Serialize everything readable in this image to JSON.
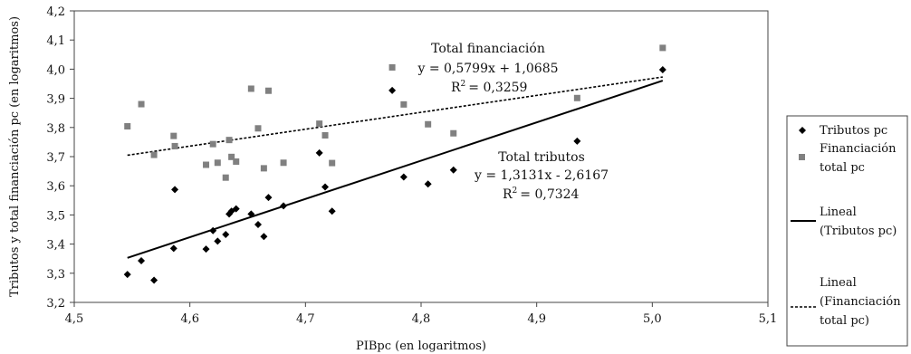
{
  "chart_data": {
    "type": "scatter",
    "xlabel": "PIBpc (en logaritmos)",
    "ylabel": "Tributos y total financiación pc (en logaritmos)",
    "xlim": [
      4.5,
      5.1
    ],
    "ylim": [
      3.2,
      4.2
    ],
    "x_ticks": [
      "4,5",
      "4,6",
      "4,7",
      "4,8",
      "4,9",
      "5,0",
      "5,1"
    ],
    "y_ticks": [
      "3,2",
      "3,3",
      "3,4",
      "3,5",
      "3,6",
      "3,7",
      "3,8",
      "3,9",
      "4,0",
      "4,1",
      "4,2"
    ],
    "grid": false,
    "legend_position": "right",
    "colors": {
      "tributos": "#000000",
      "financiacion": "#808080"
    },
    "series": [
      {
        "name": "Tributos pc",
        "marker": "diamond",
        "points": [
          [
            4.546,
            3.296
          ],
          [
            4.558,
            3.343
          ],
          [
            4.569,
            3.276
          ],
          [
            4.586,
            3.385
          ],
          [
            4.587,
            3.587
          ],
          [
            4.614,
            3.383
          ],
          [
            4.62,
            3.446
          ],
          [
            4.624,
            3.41
          ],
          [
            4.631,
            3.433
          ],
          [
            4.634,
            3.503
          ],
          [
            4.636,
            3.513
          ],
          [
            4.64,
            3.521
          ],
          [
            4.653,
            3.503
          ],
          [
            4.659,
            3.467
          ],
          [
            4.664,
            3.426
          ],
          [
            4.668,
            3.56
          ],
          [
            4.681,
            3.531
          ],
          [
            4.712,
            3.713
          ],
          [
            4.717,
            3.596
          ],
          [
            4.723,
            3.513
          ],
          [
            4.775,
            3.927
          ],
          [
            4.785,
            3.63
          ],
          [
            4.806,
            3.606
          ],
          [
            4.828,
            3.654
          ],
          [
            4.935,
            3.753
          ],
          [
            5.009,
            3.998
          ]
        ]
      },
      {
        "name": "Financiación total pc",
        "marker": "square",
        "points": [
          [
            4.546,
            3.804
          ],
          [
            4.558,
            3.88
          ],
          [
            4.569,
            3.706
          ],
          [
            4.586,
            3.771
          ],
          [
            4.587,
            3.736
          ],
          [
            4.614,
            3.672
          ],
          [
            4.62,
            3.743
          ],
          [
            4.624,
            3.679
          ],
          [
            4.631,
            3.628
          ],
          [
            4.634,
            3.757
          ],
          [
            4.636,
            3.699
          ],
          [
            4.64,
            3.683
          ],
          [
            4.653,
            3.933
          ],
          [
            4.659,
            3.797
          ],
          [
            4.664,
            3.66
          ],
          [
            4.668,
            3.926
          ],
          [
            4.681,
            3.679
          ],
          [
            4.712,
            3.813
          ],
          [
            4.717,
            3.773
          ],
          [
            4.723,
            3.678
          ],
          [
            4.775,
            4.006
          ],
          [
            4.785,
            3.879
          ],
          [
            4.806,
            3.811
          ],
          [
            4.828,
            3.78
          ],
          [
            4.935,
            3.901
          ],
          [
            5.009,
            4.073
          ]
        ]
      }
    ],
    "trendlines": [
      {
        "series": "Tributos pc",
        "name": "Lineal (Tributos pc)",
        "slope": 1.3131,
        "intercept": -2.6167,
        "x_range": [
          4.546,
          5.009
        ],
        "style": "solid"
      },
      {
        "series": "Financiación total pc",
        "name": "Lineal (Financiación total pc)",
        "slope": 0.5799,
        "intercept": 1.0685,
        "x_range": [
          4.546,
          5.009
        ],
        "style": "dashed"
      }
    ],
    "annotations": {
      "financiacion": {
        "title": "Total financiación",
        "equation": "y = 0,5799x + 1,0685",
        "r2_label": "R",
        "r2_value": "= 0,3259"
      },
      "tributos": {
        "title": "Total tributos",
        "equation": "y = 1,3131x - 2,6167",
        "r2_label": "R",
        "r2_value": "= 0,7324"
      }
    },
    "legend": [
      {
        "label": "Tributos pc",
        "marker": "diamond"
      },
      {
        "label_line1": "Financiación",
        "label_line2": "total pc",
        "marker": "square"
      },
      {
        "label_line1": "Lineal",
        "label_line2": "(Tributos pc)",
        "marker": "solid-line"
      },
      {
        "label_line1": "Lineal",
        "label_line2": "(Financiación",
        "label_line3": "total pc)",
        "marker": "dashed-line"
      }
    ]
  }
}
